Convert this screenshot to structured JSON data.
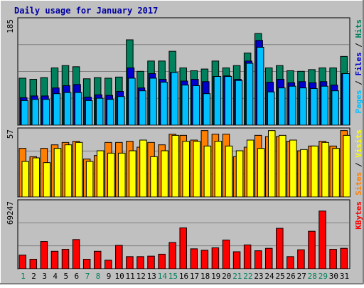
{
  "title": "Daily usage for January 2017",
  "colors": {
    "hits": "#00805C",
    "files": "#0000D0",
    "pages": "#00C0FF",
    "visits": "#FFFF00",
    "sites": "#FF8000",
    "kbytes": "#FF0000",
    "title_text": "#0000A0",
    "weekend_text": "#00805C",
    "weekday_text": "#000000",
    "background": "#C0C0C0"
  },
  "right_legends": {
    "top": [
      {
        "text": "Pages",
        "color": "#00C0FF"
      },
      {
        "text": " / ",
        "color": "#000000"
      },
      {
        "text": "Files",
        "color": "#0000D0"
      },
      {
        "text": " / ",
        "color": "#000000"
      },
      {
        "text": "Hits",
        "color": "#00805C"
      }
    ],
    "middle": [
      {
        "text": "Sites",
        "color": "#FF8000"
      },
      {
        "text": " / ",
        "color": "#000000"
      },
      {
        "text": "Visits",
        "color": "#FFFF00"
      }
    ],
    "bottom": [
      {
        "text": "KBytes",
        "color": "#FF0000"
      }
    ]
  },
  "chart_data": {
    "type": "bar",
    "title": "Daily usage for January 2017",
    "categories": [
      "1",
      "2",
      "3",
      "4",
      "5",
      "6",
      "7",
      "8",
      "9",
      "10",
      "11",
      "12",
      "13",
      "14",
      "15",
      "16",
      "17",
      "18",
      "19",
      "20",
      "21",
      "22",
      "23",
      "24",
      "25",
      "26",
      "27",
      "28",
      "29",
      "30",
      "31"
    ],
    "weekend_days": [
      "1",
      "7",
      "8",
      "14",
      "15",
      "21",
      "22",
      "28",
      "29"
    ],
    "panels": [
      {
        "name": "hits-files-pages",
        "ymax": 185,
        "ymax_label": "185",
        "series": [
          {
            "name": "Hits",
            "values": [
              82,
              80,
              83,
              100,
              104,
              102,
              81,
              83,
              82,
              84,
              149,
              94,
              112,
              112,
              129,
              100,
              95,
              98,
              112,
              100,
              104,
              126,
              160,
              100,
              104,
              95,
              94,
              97,
              100,
              100,
              120
            ]
          },
          {
            "name": "Files",
            "values": [
              48,
              51,
              51,
              65,
              69,
              71,
              49,
              53,
              52,
              59,
              100,
              65,
              90,
              80,
              92,
              77,
              80,
              76,
              85,
              86,
              80,
              112,
              148,
              75,
              80,
              74,
              76,
              74,
              76,
              70,
              90
            ]
          },
          {
            "name": "Pages",
            "values": [
              43,
              45,
              45,
              55,
              57,
              57,
              43,
              47,
              45,
              50,
              82,
              60,
              82,
              75,
              92,
              70,
              69,
              55,
              85,
              85,
              78,
              108,
              136,
              58,
              65,
              68,
              65,
              64,
              68,
              60,
              90
            ]
          }
        ]
      },
      {
        "name": "sites-visits",
        "ymax": 57,
        "ymax_label": "57",
        "series": [
          {
            "name": "Sites",
            "values": [
              41,
              34,
              41,
              44,
              46,
              47,
              32,
              35,
              46,
              46,
              47,
              42,
              46,
              44,
              53,
              52,
              48,
              56,
              53,
              53,
              34,
              42,
              52,
              51,
              51,
              47,
              39,
              43,
              47,
              43,
              56
            ]
          },
          {
            "name": "Visits",
            "values": [
              30,
              33,
              29,
              41,
              44,
              46,
              30,
              39,
              37,
              37,
              39,
              48,
              34,
              39,
              52,
              47,
              47,
              43,
              47,
              43,
              39,
              48,
              41,
              56,
              52,
              48,
              40,
              43,
              46,
              41,
              52
            ]
          }
        ]
      },
      {
        "name": "kbytes",
        "ymax": 69247,
        "ymax_label": "69247",
        "series": [
          {
            "name": "KBytes",
            "values": [
              14000,
              9800,
              28000,
              18000,
              20000,
              30000,
              9800,
              18000,
              8800,
              24000,
              12500,
              12500,
              13000,
              15000,
              27000,
              42000,
              20500,
              19000,
              21500,
              29500,
              17500,
              24500,
              18500,
              21000,
              41500,
              12500,
              19500,
              38500,
              59200,
              20000,
              21000
            ]
          }
        ]
      }
    ]
  }
}
